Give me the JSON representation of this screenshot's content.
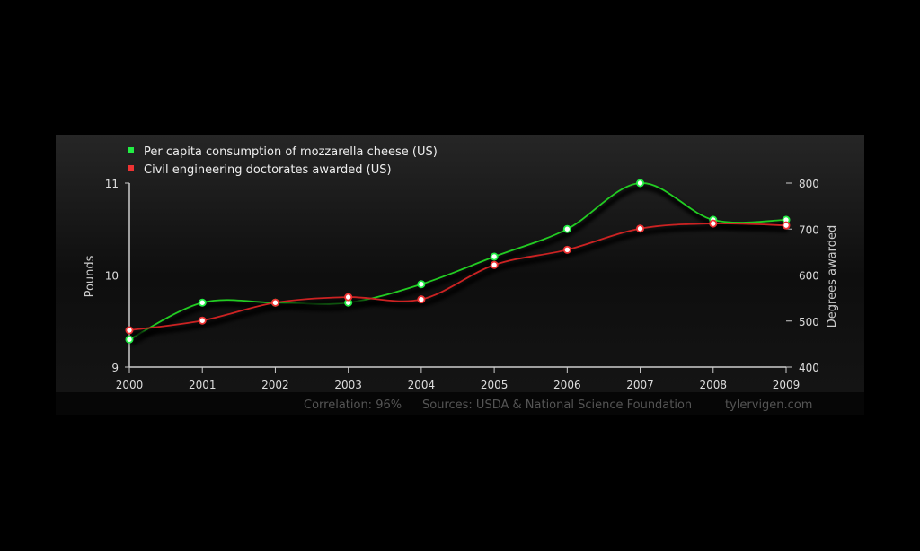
{
  "chart_data": {
    "type": "line",
    "x": [
      2000,
      2001,
      2002,
      2003,
      2004,
      2005,
      2006,
      2007,
      2008,
      2009
    ],
    "series": [
      {
        "name": "Per capita consumption of mozzarella cheese (US)",
        "axis": "left",
        "color": "#22cc22",
        "values": [
          9.3,
          9.7,
          9.7,
          9.7,
          9.9,
          10.2,
          10.5,
          11.0,
          10.6,
          10.6
        ]
      },
      {
        "name": "Civil engineering doctorates awarded (US)",
        "axis": "right",
        "color": "#cc2222",
        "values": [
          480,
          501,
          540,
          552,
          547,
          622,
          655,
          701,
          712,
          708
        ]
      }
    ],
    "ylabel_left": "Pounds",
    "ylabel_right": "Degrees awarded",
    "ylim_left": [
      9,
      11
    ],
    "yticks_left": [
      "9",
      "10",
      "11"
    ],
    "ylim_right": [
      400,
      800
    ],
    "yticks_right": [
      "400",
      "500",
      "600",
      "700",
      "800"
    ],
    "xticks": [
      "2000",
      "2001",
      "2002",
      "2003",
      "2004",
      "2005",
      "2006",
      "2007",
      "2008",
      "2009"
    ],
    "legend": "top-left",
    "grid": false,
    "smooth": true
  },
  "footer": {
    "correlation": "Correlation: 96%",
    "sources": "Sources: USDA & National Science Foundation",
    "site": "tylervigen.com"
  }
}
